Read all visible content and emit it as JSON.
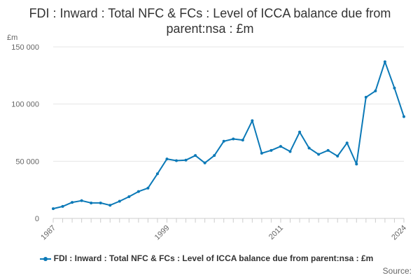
{
  "colors": {
    "series": "#0b79b7",
    "grid": "#e6e6e6",
    "axis": "#cccccc",
    "text": "#333333",
    "muted": "#666666"
  },
  "chart_data": {
    "type": "line",
    "title": "FDI : Inward : Total NFC & FCs : Level of ICCA balance due from parent:nsa : £m",
    "xlabel": "",
    "ylabel": "£m",
    "ylim": [
      0,
      150000
    ],
    "yticks": [
      0,
      50000,
      100000,
      150000
    ],
    "ytick_labels": [
      "0",
      "50 000",
      "100 000",
      "150 000"
    ],
    "xlim": [
      1987,
      2024
    ],
    "xticks": [
      1987,
      1999,
      2011,
      2024
    ],
    "xtick_labels": [
      "1987",
      "1999",
      "2011",
      "2024"
    ],
    "grid": true,
    "legend_position": "bottom",
    "source_label": "Source:",
    "series": [
      {
        "name": "FDI : Inward : Total NFC & FCs : Level of ICCA balance due from parent:nsa : £m",
        "x": [
          1987,
          1988,
          1989,
          1990,
          1991,
          1992,
          1993,
          1994,
          1995,
          1996,
          1997,
          1998,
          1999,
          2000,
          2001,
          2002,
          2003,
          2004,
          2005,
          2006,
          2007,
          2008,
          2009,
          2010,
          2011,
          2012,
          2013,
          2014,
          2015,
          2016,
          2017,
          2018,
          2019,
          2020,
          2021,
          2022,
          2023,
          2024
        ],
        "values": [
          8500,
          10500,
          14000,
          15500,
          13500,
          13500,
          11500,
          15000,
          19000,
          23500,
          26500,
          39000,
          52000,
          50500,
          51000,
          55000,
          48500,
          55000,
          67500,
          69500,
          68500,
          85500,
          57000,
          59500,
          63000,
          58500,
          75500,
          61500,
          56000,
          59500,
          54500,
          66000,
          47500,
          106000,
          111500,
          137000,
          114000,
          89000
        ]
      }
    ]
  }
}
